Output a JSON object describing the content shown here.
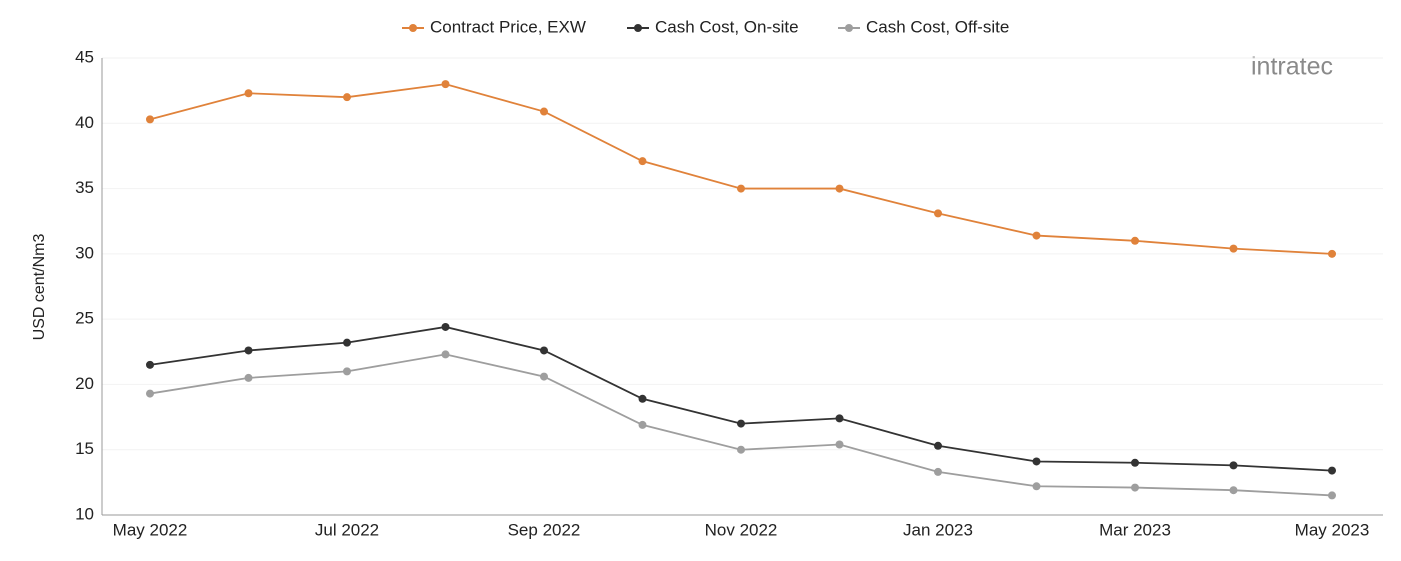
{
  "chart_data": {
    "type": "line",
    "logo": "intratec",
    "y_label": "USD cent/Nm3",
    "categories": [
      "May 2022",
      null,
      "Jul 2022",
      null,
      "Sep 2022",
      null,
      "Nov 2022",
      null,
      "Jan 2023",
      null,
      "Mar 2023",
      null,
      "May 2023"
    ],
    "series": [
      {
        "name": "Contract Price, EXW",
        "color": "#e0823a",
        "values": [
          40.3,
          42.3,
          42.0,
          43.0,
          40.9,
          37.1,
          35.0,
          35.0,
          33.1,
          31.4,
          31.0,
          30.4,
          30.0
        ]
      },
      {
        "name": "Cash Cost, On-site",
        "color": "#333333",
        "values": [
          21.5,
          22.6,
          23.2,
          24.4,
          22.6,
          18.9,
          17.0,
          17.4,
          15.3,
          14.1,
          14.0,
          13.8,
          13.4
        ]
      },
      {
        "name": "Cash Cost, Off-site",
        "color": "#9e9e9e",
        "values": [
          19.3,
          20.5,
          21.0,
          22.3,
          20.6,
          16.9,
          15.0,
          15.4,
          13.3,
          12.2,
          12.1,
          11.9,
          11.5
        ]
      }
    ],
    "ylim": [
      10,
      45
    ],
    "yticks": [
      10,
      15,
      20,
      25,
      30,
      35,
      40,
      45
    ],
    "grid": true,
    "legend": "top"
  }
}
